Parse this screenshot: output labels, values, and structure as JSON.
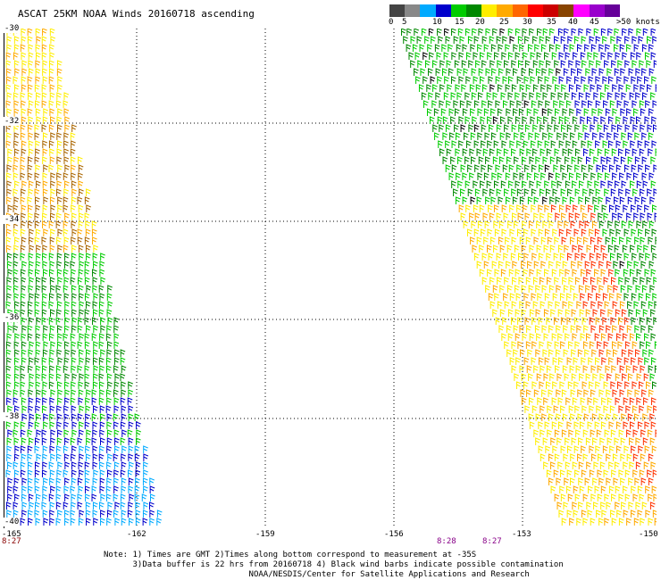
{
  "header": {
    "title": "ASCAT 25KM NOAA Winds 20160718 ascending"
  },
  "colorbar": {
    "colors": [
      "#444444",
      "#888888",
      "#00aaff",
      "#0000cc",
      "#00cc00",
      "#008800",
      "#ffee00",
      "#ffaa00",
      "#ff6600",
      "#ff0000",
      "#cc0000",
      "#884400",
      "#ff00ff",
      "#9900cc",
      "#660099"
    ],
    "labels": [
      "0",
      "5",
      "10",
      "15",
      "20",
      "25",
      "30",
      "35",
      "40",
      "45",
      ">50 knots"
    ]
  },
  "axes": {
    "lat_labels": [
      "-30",
      "-32",
      "-34",
      "-36",
      "-38",
      "-40"
    ],
    "lon_labels": [
      "-165",
      "-162",
      "-159",
      "-156",
      "-153",
      "-150"
    ]
  },
  "pass_times": [
    "8:27",
    "8:28",
    "8:27"
  ],
  "notes": {
    "line1": "Note: 1) Times are GMT 2)Times along bottom correspond to measurement at -35S",
    "line2": "      3)Data buffer is 22 hrs from 20160718 4) Black wind barbs indicate possible contamination",
    "line3": "                              NOAA/NESDIS/Center for Satellite Applications and Research"
  },
  "barb_colors": {
    "dark_blue": "#0000cc",
    "light_blue": "#00aaff",
    "green": "#00cc00",
    "dark_green": "#008800",
    "yellow": "#ffee00",
    "orange": "#ffaa00",
    "red": "#ff3300",
    "brown": "#aa6600",
    "black": "#000000"
  }
}
